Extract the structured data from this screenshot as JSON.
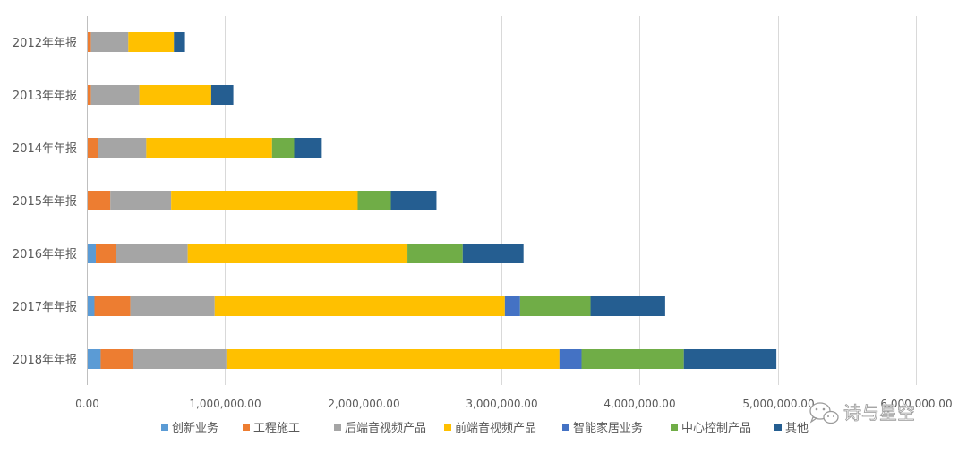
{
  "chart_data": {
    "type": "bar",
    "orientation": "horizontal",
    "stacked": true,
    "title": "",
    "xlabel": "",
    "ylabel": "",
    "xlim": [
      0,
      6000000
    ],
    "x_ticks": [
      0,
      1000000,
      2000000,
      3000000,
      4000000,
      5000000,
      6000000
    ],
    "x_tick_labels": [
      "0.00",
      "1,000,000.00",
      "2,000,000.00",
      "3,000,000.00",
      "4,000,000.00",
      "5,000,000.00",
      "6,000,000.00"
    ],
    "grid": "vertical",
    "legend_position": "bottom",
    "categories": [
      "2012年年报",
      "2013年年报",
      "2014年年报",
      "2015年年报",
      "2016年年报",
      "2017年年报",
      "2018年年报"
    ],
    "series": [
      {
        "name": "创新业务",
        "color": "#5B9BD5",
        "values": [
          0,
          0,
          0,
          0,
          65000,
          55000,
          100000
        ]
      },
      {
        "name": "工程施工",
        "color": "#ED7D31",
        "values": [
          30000,
          30000,
          80000,
          170000,
          145000,
          260000,
          235000
        ]
      },
      {
        "name": "后端音视频产品",
        "color": "#A5A5A5",
        "values": [
          270000,
          350000,
          350000,
          440000,
          520000,
          610000,
          675000
        ]
      },
      {
        "name": "前端音视频产品",
        "color": "#FFC000",
        "values": [
          330000,
          520000,
          910000,
          1350000,
          1590000,
          2100000,
          2410000
        ]
      },
      {
        "name": "智能家居业务",
        "color": "#4472C4",
        "values": [
          0,
          0,
          0,
          0,
          0,
          110000,
          160000
        ]
      },
      {
        "name": "中心控制产品",
        "color": "#70AD47",
        "values": [
          0,
          0,
          160000,
          240000,
          400000,
          510000,
          740000
        ]
      },
      {
        "name": "其他",
        "color": "#255E91",
        "values": [
          80000,
          160000,
          200000,
          330000,
          440000,
          540000,
          670000
        ]
      }
    ]
  },
  "watermark": {
    "text": "诗与星空",
    "icon": "wechat-icon"
  }
}
